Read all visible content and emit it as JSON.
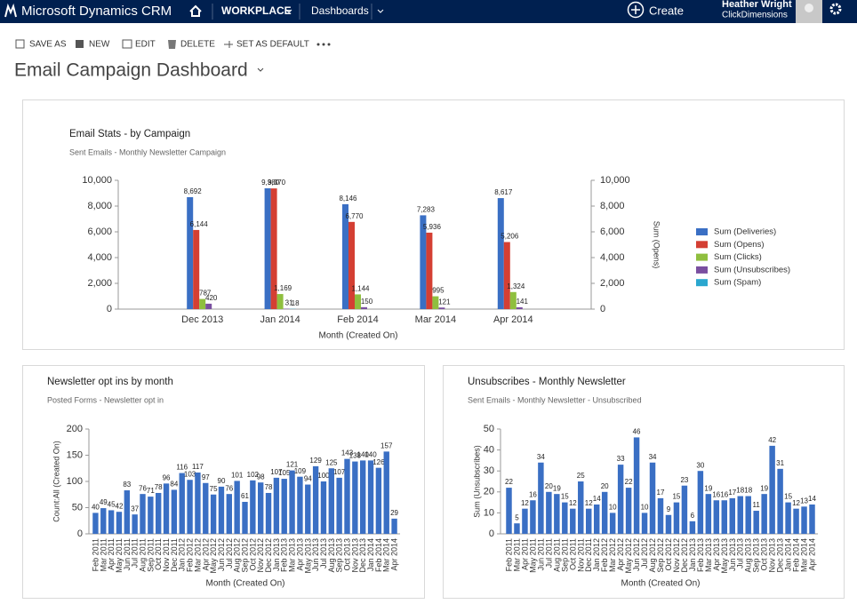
{
  "header": {
    "brand": "Microsoft Dynamics CRM",
    "nav": [
      "WORKPLACE",
      "Dashboards"
    ],
    "create": "Create",
    "user": "Heather Wright",
    "org": "ClickDimensions"
  },
  "toolbar": [
    "SAVE AS",
    "NEW",
    "EDIT",
    "DELETE",
    "SET AS DEFAULT"
  ],
  "page_title": "Email Campaign Dashboard",
  "chart_data": [
    {
      "type": "bar",
      "title": "Email Stats - by Campaign",
      "subtitle": "Sent Emails - Monthly Newsletter Campaign",
      "x_label": "Month (Created On)",
      "y2_label": "Sum (Opens)",
      "categories": [
        "Dec 2013",
        "Jan 2014",
        "Feb 2014",
        "Mar 2014",
        "Apr 2014"
      ],
      "series": [
        {
          "name": "Sum (Deliveries)",
          "color": "#3a6fc4",
          "values": [
            8692,
            9380,
            8146,
            7283,
            8617
          ],
          "value_labels": [
            "8,692",
            "9,380",
            "8,146",
            "7,283",
            "8,617"
          ]
        },
        {
          "name": "Sum (Opens)",
          "color": "#d43f33",
          "axis": "y2",
          "values": [
            6144,
            9370,
            6770,
            5936,
            5206
          ],
          "value_labels": [
            "6,144",
            "9,370",
            "6,770",
            "5,936",
            "5,206"
          ]
        },
        {
          "name": "Sum (Clicks)",
          "color": "#8fbf3f",
          "values": [
            787,
            1169,
            1144,
            995,
            1324
          ],
          "value_labels": [
            "787",
            "1,169",
            "1,144",
            "995",
            "1,324"
          ]
        },
        {
          "name": "Sum (Unsubscribes)",
          "color": "#7a4fa0",
          "values": [
            420,
            31,
            150,
            121,
            141
          ]
        },
        {
          "name": "Sum (Spam)",
          "color": "#2aa7cf",
          "values": [
            null,
            18,
            null,
            null,
            null
          ]
        }
      ],
      "ylim": [
        0,
        10000
      ],
      "yticks": [
        0,
        {
          "value": 2000,
          "label": "2,000"
        },
        {
          "value": 4000,
          "label": "4,000"
        },
        {
          "value": 6000,
          "label": "6,000"
        },
        {
          "value": 8000,
          "label": "8,000"
        },
        {
          "value": 10000,
          "label": "10,000"
        }
      ],
      "y2lim": [
        0,
        10000
      ],
      "y2ticks": [
        0,
        {
          "value": 2000,
          "label": "2,000"
        },
        {
          "value": 4000,
          "label": "4,000"
        },
        {
          "value": 6000,
          "label": "6,000"
        },
        {
          "value": 8000,
          "label": "8,000"
        },
        {
          "value": 10000,
          "label": "10,000"
        }
      ],
      "legend": "right"
    },
    {
      "type": "bar",
      "title": "Newsletter opt ins by month",
      "subtitle": "Posted Forms - Newsletter opt in",
      "x_label": "Month (Created On)",
      "y_label": "Count:All (Created On)",
      "categories": [
        "Feb 2011",
        "Mar 2011",
        "Apr 2011",
        "May 2011",
        "Jun 2011",
        "Jul 2011",
        "Aug 2011",
        "Sep 2011",
        "Oct 2011",
        "Nov 2011",
        "Dec 2011",
        "Jan 2012",
        "Feb 2012",
        "Mar 2012",
        "Apr 2012",
        "May 2012",
        "Jun 2012",
        "Jul 2012",
        "Aug 2012",
        "Sep 2012",
        "Oct 2012",
        "Nov 2012",
        "Dec 2012",
        "Jan 2013",
        "Feb 2013",
        "Mar 2013",
        "Apr 2013",
        "May 2013",
        "Jun 2013",
        "Jul 2013",
        "Aug 2013",
        "Sep 2013",
        "Oct 2013",
        "Nov 2013",
        "Dec 2013",
        "Jan 2014",
        "Feb 2014",
        "Mar 2014",
        "Apr 2014"
      ],
      "series": [
        {
          "name": "Count:All (Created On)",
          "color": "#3a6fc4",
          "values": [
            40,
            49,
            45,
            42,
            83,
            37,
            76,
            71,
            78,
            96,
            84,
            116,
            103,
            117,
            97,
            75,
            90,
            76,
            101,
            61,
            102,
            98,
            78,
            107,
            105,
            121,
            109,
            94,
            129,
            100,
            125,
            107,
            143,
            138,
            140,
            140,
            126,
            157,
            29
          ]
        }
      ],
      "ylim": [
        0,
        200
      ],
      "yticks": [
        0,
        50,
        100,
        150,
        200
      ]
    },
    {
      "type": "bar",
      "title": "Unsubscribes - Monthly Newsletter",
      "subtitle": "Sent Emails - Monthly Newsletter - Unsubscribed",
      "x_label": "Month (Created On)",
      "y_label": "Sum (Unsubscribes)",
      "categories": [
        "Feb 2011",
        "Mar 2011",
        "Apr 2011",
        "May 2011",
        "Jun 2011",
        "Jul 2011",
        "Aug 2011",
        "Sep 2011",
        "Oct 2011",
        "Nov 2011",
        "Dec 2011",
        "Jan 2012",
        "Feb 2012",
        "Mar 2012",
        "Apr 2012",
        "May 2012",
        "Jun 2012",
        "Jul 2012",
        "Aug 2012",
        "Sep 2012",
        "Oct 2012",
        "Nov 2012",
        "Dec 2012",
        "Jan 2013",
        "Feb 2013",
        "Mar 2013",
        "Apr 2013",
        "May 2013",
        "Jun 2013",
        "Jul 2013",
        "Aug 2013",
        "Sep 2013",
        "Oct 2013",
        "Nov 2013",
        "Dec 2013",
        "Jan 2014",
        "Feb 2014",
        "Mar 2014",
        "Apr 2014"
      ],
      "series": [
        {
          "name": "Sum (Unsubscribes)",
          "color": "#3a6fc4",
          "values": [
            22,
            5,
            12,
            16,
            34,
            20,
            19,
            15,
            12,
            25,
            12,
            14,
            20,
            10,
            33,
            22,
            46,
            10,
            34,
            17,
            9,
            15,
            23,
            6,
            30,
            19,
            16,
            16,
            17,
            18,
            18,
            11,
            19,
            42,
            31,
            15,
            12,
            13,
            14
          ]
        }
      ],
      "ylim": [
        0,
        50
      ],
      "yticks": [
        0,
        10,
        20,
        30,
        40,
        50
      ]
    }
  ]
}
